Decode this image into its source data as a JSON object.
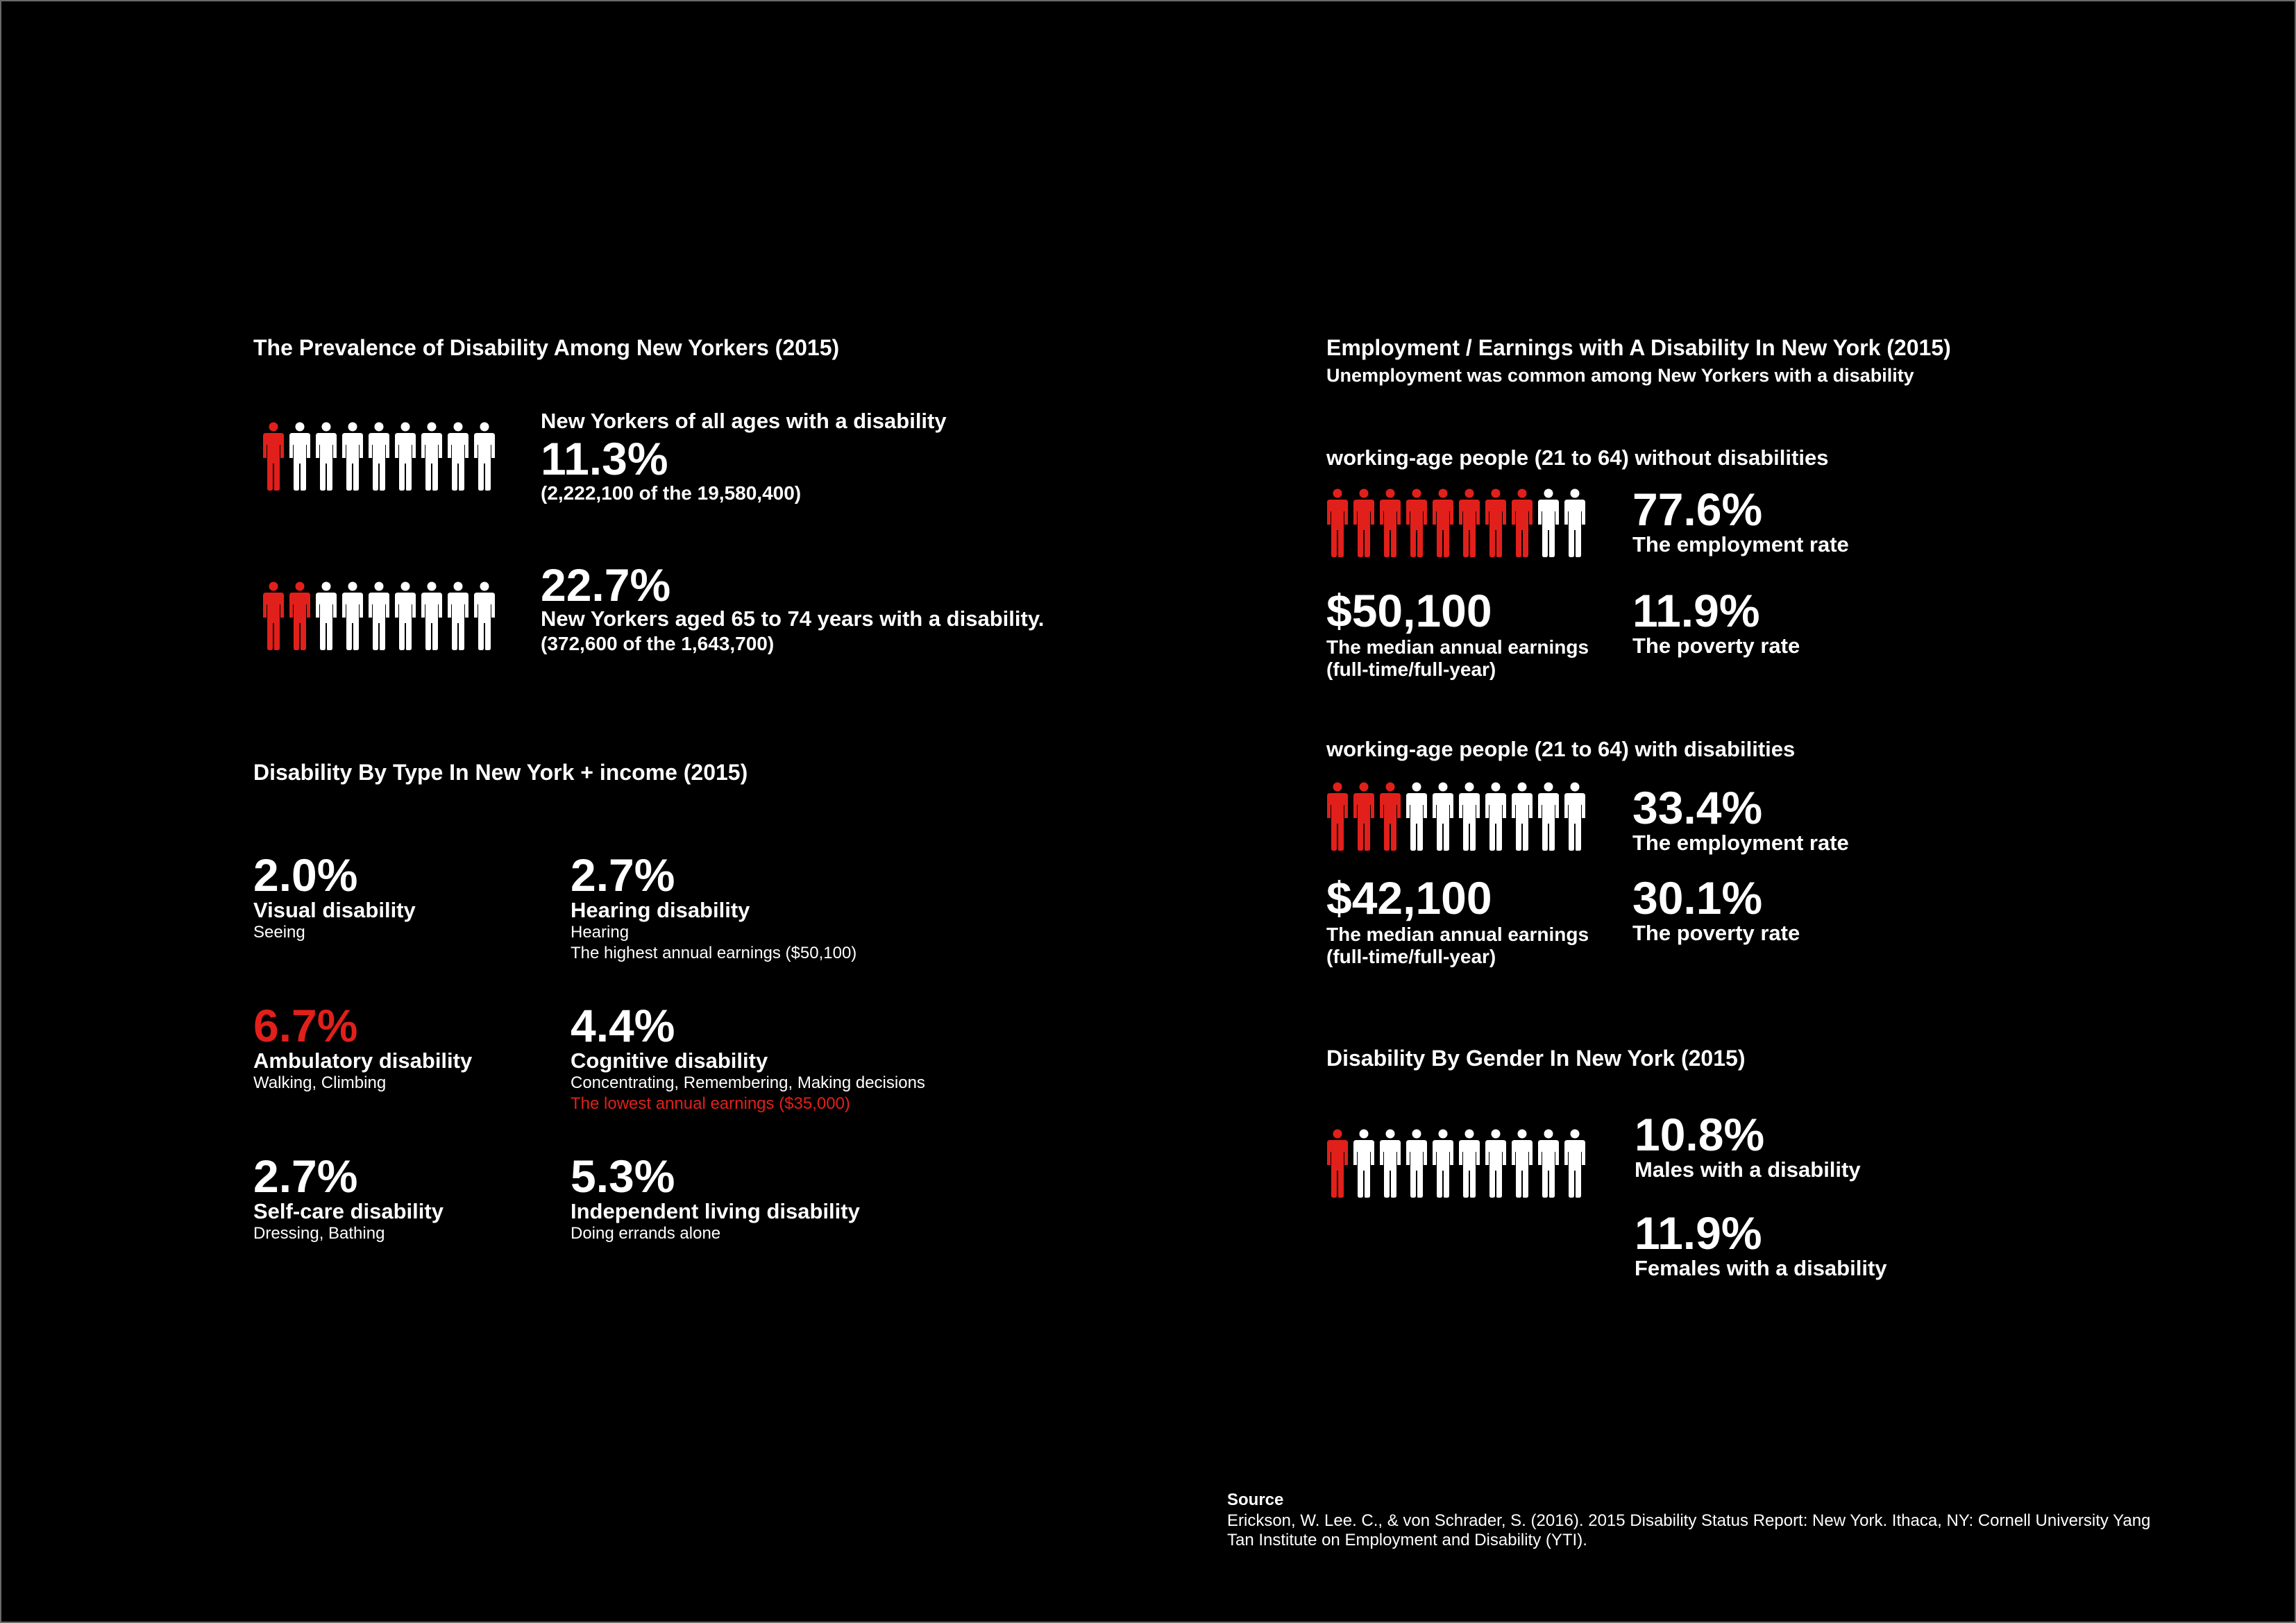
{
  "colors": {
    "accent": "#e1201b",
    "inactive": "#ffffff",
    "background": "#000000"
  },
  "prevalence": {
    "title": "The Prevalence of Disability Among New Yorkers (2015)",
    "all_ages": {
      "label": "New Yorkers of all ages with a disability",
      "value": "11.3%",
      "detail": "(2,222,100 of the 19,580,400)",
      "highlighted": 1,
      "total": 9
    },
    "aged": {
      "value": "22.7%",
      "label": "New Yorkers aged 65 to 74 years with a disability.",
      "detail": "(372,600 of the 1,643,700)",
      "highlighted": 2,
      "total": 9
    }
  },
  "by_type": {
    "title": "Disability By Type In New York + income (2015)",
    "visual": {
      "value": "2.0%",
      "label": "Visual disability",
      "desc": "Seeing"
    },
    "hearing": {
      "value": "2.7%",
      "label": "Hearing disability",
      "desc": "Hearing",
      "note": "The highest annual earnings ($50,100)"
    },
    "ambulatory": {
      "value": "6.7%",
      "label": "Ambulatory disability",
      "desc": "Walking, Climbing"
    },
    "cognitive": {
      "value": "4.4%",
      "label": "Cognitive disability",
      "desc": "Concentrating, Remembering, Making decisions",
      "note": "The lowest annual earnings ($35,000)"
    },
    "selfcare": {
      "value": "2.7%",
      "label": "Self-care disability",
      "desc": "Dressing, Bathing"
    },
    "independent": {
      "value": "5.3%",
      "label": "Independent living disability",
      "desc": "Doing errands alone"
    }
  },
  "employment": {
    "title": "Employment / Earnings with A Disability In New York (2015)",
    "subtitle": "Unemployment was common among New Yorkers with a disability",
    "without": {
      "heading": "working-age people (21 to 64) without disabilities",
      "highlighted": 8,
      "total": 10,
      "employment_value": "77.6%",
      "employment_label": "The employment rate",
      "earnings_value": "$50,100",
      "earnings_label": "The median annual earnings",
      "earnings_note": "(full-time/full-year)",
      "poverty_value": "11.9%",
      "poverty_label": "The poverty rate"
    },
    "with": {
      "heading": "working-age people (21 to 64) with disabilities",
      "highlighted": 3,
      "total": 10,
      "employment_value": "33.4%",
      "employment_label": "The employment rate",
      "earnings_value": "$42,100",
      "earnings_label": "The median annual earnings",
      "earnings_note": "(full-time/full-year)",
      "poverty_value": "30.1%",
      "poverty_label": "The poverty rate"
    }
  },
  "gender": {
    "title": "Disability By Gender In New York (2015)",
    "highlighted": 1,
    "total": 10,
    "males_value": "10.8%",
    "males_label": "Males with a disability",
    "females_value": "11.9%",
    "females_label": "Females with a disability"
  },
  "source": {
    "title": "Source",
    "line1": "Erickson, W. Lee. C., & von Schrader, S. (2016). 2015 Disability Status Report: New York. Ithaca, NY: Cornell University Yang",
    "line2": "Tan Institute on Employment and Disability (YTI)."
  }
}
